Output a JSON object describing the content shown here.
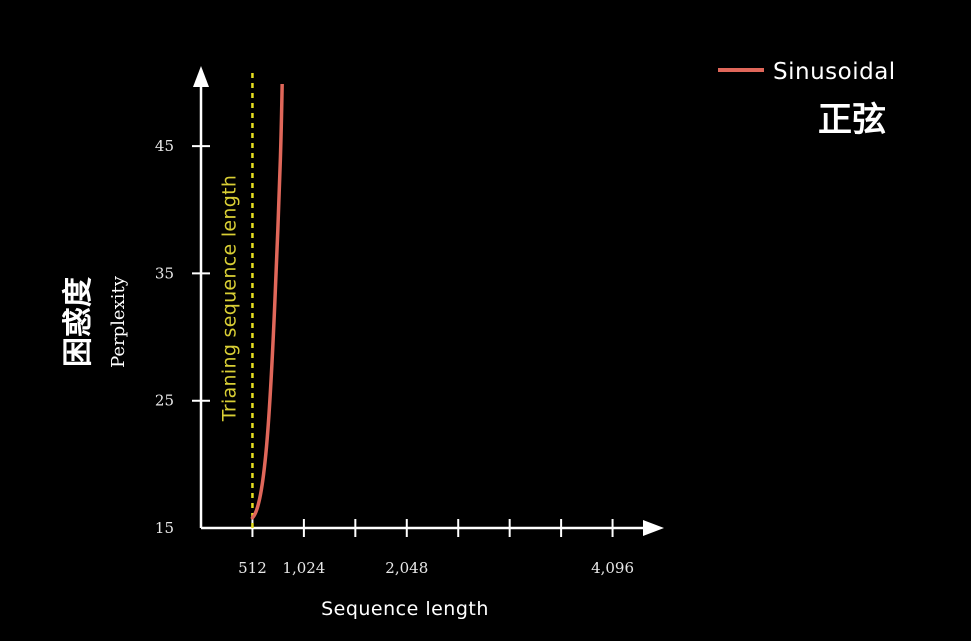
{
  "chart_data": {
    "type": "line",
    "xlabel": "Sequence length",
    "ylabel": "Perplexity",
    "ylabel_cn": "困惑度",
    "xticks": [
      512,
      1024,
      2048,
      4096
    ],
    "xtick_labels": [
      "512",
      "1,024",
      "2,048",
      "4,096"
    ],
    "yticks": [
      15,
      25,
      35,
      45
    ],
    "ytick_labels": [
      "15",
      "25",
      "35",
      "45"
    ],
    "xlim": [
      0,
      4608
    ],
    "ylim": [
      15,
      52
    ],
    "grid": false,
    "legend_placement": "top-right",
    "reference_line": {
      "x": 512,
      "label": "Trianing sequence length",
      "color": "#e6df20",
      "style": "dashed"
    },
    "series": [
      {
        "name": "Sinusoidal",
        "name_cn": "正弦",
        "color": "#e0675a",
        "x": [
          512,
          540,
          570,
          600,
          630,
          660,
          690,
          720,
          750,
          780,
          800,
          815
        ],
        "y": [
          15.8,
          16.1,
          16.8,
          17.9,
          19.6,
          22.0,
          25.5,
          30.0,
          35.5,
          41.5,
          46.5,
          53.0
        ]
      }
    ]
  }
}
